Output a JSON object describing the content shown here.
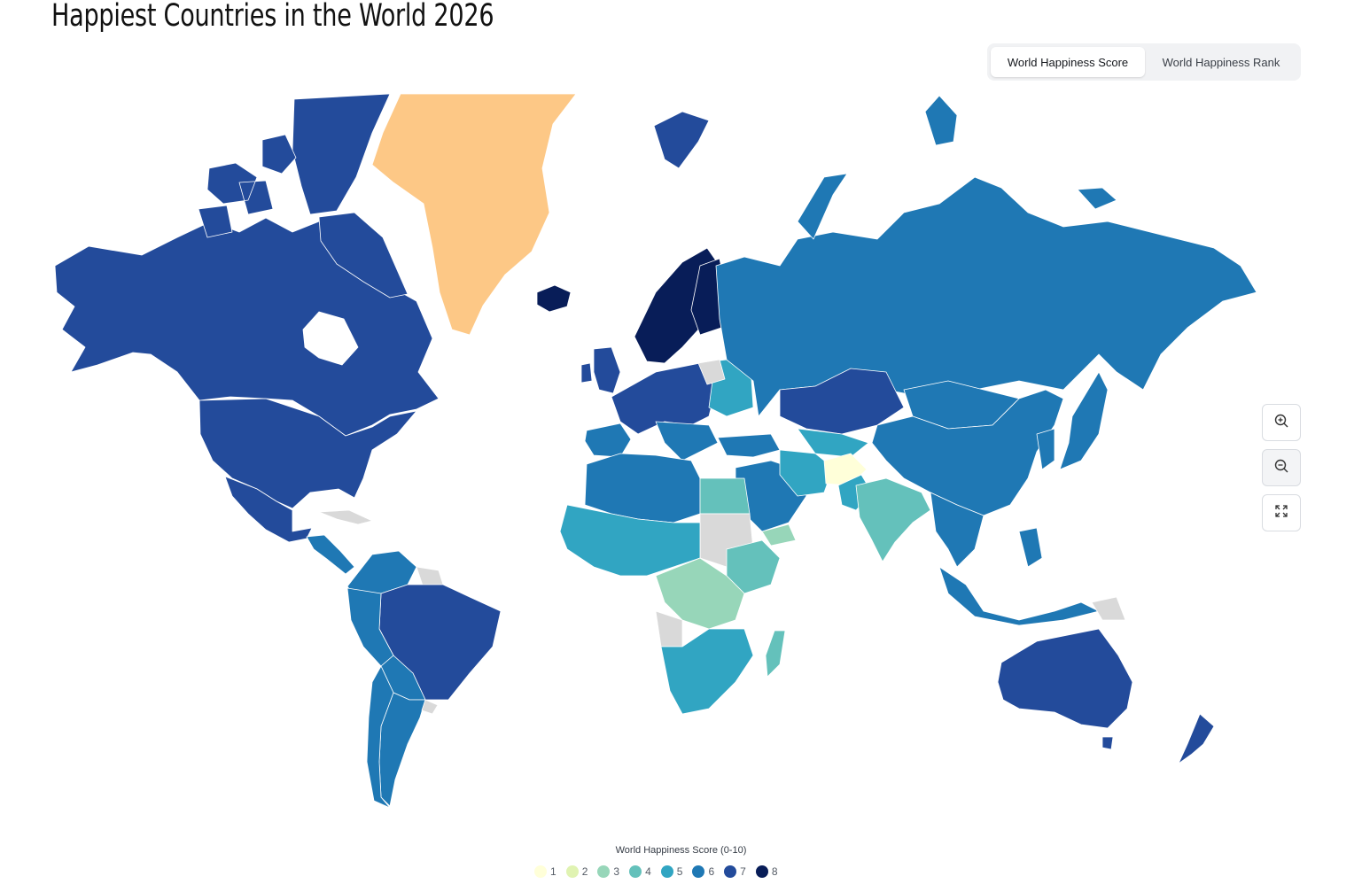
{
  "page": {
    "title": "Happiest Countries in the World 2026"
  },
  "tabs": [
    {
      "label": "World Happiness Score",
      "active": true
    },
    {
      "label": "World Happiness Rank",
      "active": false
    }
  ],
  "zoom_controls": [
    "zoom-in-icon",
    "zoom-out-icon",
    "fullscreen-icon"
  ],
  "legend": {
    "title": "World Happiness Score (0-10)",
    "items": [
      {
        "label": "1",
        "color": "#ffffd9"
      },
      {
        "label": "2",
        "color": "#e0f3b2"
      },
      {
        "label": "3",
        "color": "#97d6b9"
      },
      {
        "label": "4",
        "color": "#64c1bb"
      },
      {
        "label": "5",
        "color": "#31a5c2"
      },
      {
        "label": "6",
        "color": "#1f78b4"
      },
      {
        "label": "7",
        "color": "#234b9b"
      },
      {
        "label": "8",
        "color": "#081d58"
      }
    ]
  },
  "map_colors": {
    "no_data": "#d9d9d9",
    "greenland": "#fdc886"
  }
}
